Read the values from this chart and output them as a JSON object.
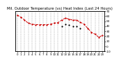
{
  "title": "Mil. Outdoor Temperature (vs) Heat Index (Last 24 Hours)",
  "title_fontsize": 3.8,
  "background_color": "#ffffff",
  "plot_bg_color": "#ffffff",
  "grid_color": "#888888",
  "line1_color": "#cc0000",
  "line2_color": "#000000",
  "marker_size": 1.2,
  "line_width": 0.7,
  "ylim": [
    -10,
    70
  ],
  "yticks": [
    -10,
    0,
    10,
    20,
    30,
    40,
    50,
    60,
    70
  ],
  "ylabel_fontsize": 3.0,
  "xlabel_fontsize": 2.8,
  "temp_data": [
    62,
    58,
    52,
    46,
    44,
    43,
    43,
    43,
    43,
    44,
    46,
    47,
    52,
    56,
    54,
    52,
    52,
    48,
    44,
    36,
    28,
    24,
    18,
    22
  ],
  "heat_data": [
    null,
    null,
    null,
    null,
    null,
    null,
    null,
    null,
    null,
    null,
    null,
    null,
    40,
    44,
    42,
    40,
    40,
    36,
    null,
    null,
    null,
    null,
    null,
    null
  ],
  "x_labels": [
    "0",
    "1",
    "2",
    "3",
    "4",
    "5",
    "6",
    "7",
    "8",
    "9",
    "10",
    "11",
    "12",
    "13",
    "14",
    "15",
    "16",
    "17",
    "18",
    "19",
    "20",
    "21",
    "22",
    "23"
  ]
}
